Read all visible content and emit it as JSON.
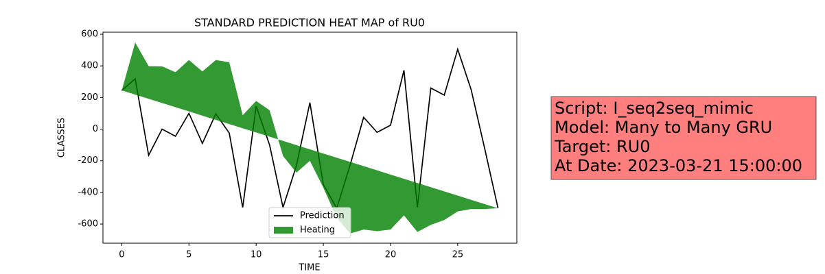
{
  "chart_data": {
    "type": "line",
    "title": "STANDARD PREDICTION HEAT MAP of RU0",
    "x_label": "TIME",
    "y_label": "CLASSES",
    "x": [
      0,
      1,
      2,
      3,
      4,
      5,
      6,
      7,
      8,
      9,
      10,
      11,
      12,
      13,
      14,
      15,
      16,
      17,
      18,
      19,
      20,
      21,
      22,
      23,
      24,
      25,
      26,
      27,
      28
    ],
    "series": [
      {
        "name": "Prediction",
        "color": "#000000",
        "values": [
          245,
          318,
          -165,
          0,
          -45,
          100,
          -90,
          97,
          -25,
          -495,
          145,
          -100,
          -495,
          -230,
          168,
          -350,
          -500,
          -225,
          75,
          -20,
          25,
          372,
          -495,
          260,
          215,
          505,
          250,
          -120,
          -500
        ]
      },
      {
        "name": "Heating",
        "color": "#008000",
        "values": [
          245,
          548,
          398,
          397,
          360,
          437,
          365,
          437,
          423,
          88,
          178,
          120,
          -170,
          -275,
          -200,
          -370,
          -560,
          -660,
          -635,
          -645,
          -635,
          -545,
          -650,
          -605,
          -575,
          -520,
          -505,
          -505,
          -500
        ],
        "base": [
          245,
          218.4,
          191.8,
          165.2,
          138.6,
          112.0,
          85.4,
          58.8,
          32.1,
          5.5,
          -21.1,
          -47.7,
          -74.3,
          -100.9,
          -127.5,
          -154.1,
          -180.7,
          -207.3,
          -233.9,
          -260.5,
          -287.1,
          -313.8,
          -340.4,
          -367.0,
          -393.6,
          -420.2,
          -446.8,
          -473.4,
          -500
        ]
      }
    ],
    "xlim": [
      -1.4,
      29.4
    ],
    "xticks": [
      0,
      5,
      10,
      15,
      20,
      25
    ],
    "ylim": [
      -721,
      613
    ],
    "yticks": [
      -600,
      -400,
      -200,
      0,
      200,
      400,
      600
    ],
    "legend": "lower center",
    "annotations": [
      "Script: I_seq2seq_mimic",
      "Model: Many to Many GRU",
      "Target: RU0",
      "At Date: 2023-03-21 15:00:00"
    ]
  }
}
